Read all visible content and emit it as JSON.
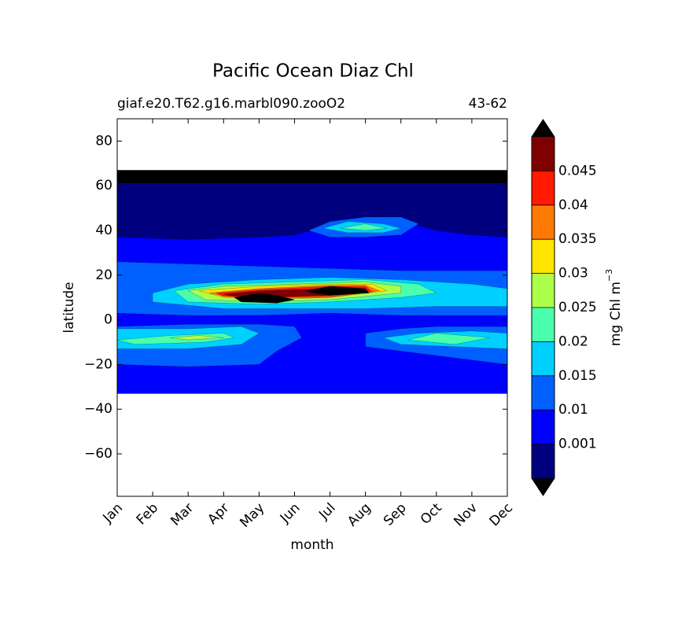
{
  "chart_data": {
    "type": "contourf",
    "title": "Pacific Ocean Diaz Chl",
    "subtitle_left": "giaf.e20.T62.g16.marbl090.zooO2",
    "subtitle_right": "43-62",
    "x_label": "month",
    "y_label": "latitude",
    "categories": [
      "Jan",
      "Feb",
      "Mar",
      "Apr",
      "May",
      "Jun",
      "Jul",
      "Aug",
      "Sep",
      "Oct",
      "Nov",
      "Dec"
    ],
    "ylim": [
      -79,
      90
    ],
    "yticks": [
      {
        "value": -60,
        "label": "−60"
      },
      {
        "value": -40,
        "label": "−40"
      },
      {
        "value": -20,
        "label": "−20"
      },
      0,
      20,
      40,
      60,
      80
    ],
    "colorbar_label": "mg Chl m",
    "colorbar_label_exponent": "−3",
    "levels": [
      0.001,
      0.01,
      0.015,
      0.02,
      0.025,
      0.03,
      0.035,
      0.04,
      0.045
    ],
    "colors": [
      "#00007f",
      "#0000ff",
      "#0060ff",
      "#00d0ff",
      "#49ffad",
      "#adff49",
      "#ffe500",
      "#ff7a00",
      "#ff1a00",
      "#7f0000"
    ],
    "extend_color": "#000000",
    "regions": [
      {
        "color": "#00007f",
        "x": [
          0,
          11,
          11,
          0
        ],
        "y": [
          61,
          61,
          -33,
          -33
        ]
      },
      {
        "color": "#000000",
        "x": [
          0,
          11,
          11,
          0
        ],
        "y": [
          67,
          67,
          61,
          61
        ]
      },
      {
        "color": "#0000ff",
        "x": [
          0,
          2,
          4,
          5,
          6,
          7,
          8,
          9,
          10,
          11,
          11,
          0
        ],
        "y": [
          37,
          36,
          37,
          38,
          42,
          45,
          44,
          40,
          38,
          37,
          -33,
          -33
        ]
      },
      {
        "color": "#0060ff",
        "x": [
          5.4,
          6,
          7,
          8,
          8.5,
          8,
          7,
          6
        ],
        "y": [
          40,
          44,
          46,
          46,
          43,
          38,
          37,
          37
        ]
      },
      {
        "color": "#0060ff",
        "x": [
          0,
          2,
          4,
          6,
          8,
          10,
          11,
          11,
          8,
          6,
          4,
          2,
          0
        ],
        "y": [
          26,
          25,
          24,
          23,
          22,
          22,
          22,
          2,
          2,
          3,
          2,
          2,
          3
        ]
      },
      {
        "color": "#0060ff",
        "x": [
          0,
          2,
          4,
          5,
          5.2,
          4.5,
          4,
          2,
          0
        ],
        "y": [
          -3,
          -2,
          -2,
          -3,
          -8,
          -14,
          -20,
          -21,
          -20
        ]
      },
      {
        "color": "#0060ff",
        "x": [
          7,
          8,
          9,
          11,
          11,
          9,
          7
        ],
        "y": [
          -6,
          -4,
          -3,
          -3,
          -20,
          -16,
          -12
        ]
      },
      {
        "color": "#00d0ff",
        "x": [
          1,
          2,
          4,
          6,
          8,
          10,
          11,
          11,
          9,
          7,
          5,
          3,
          1
        ],
        "y": [
          12,
          16,
          18,
          19,
          18,
          16,
          14,
          6,
          6,
          5,
          5,
          5,
          8
        ]
      },
      {
        "color": "#00d0ff",
        "x": [
          5.8,
          6.5,
          7.5,
          8,
          7.5,
          6.5
        ],
        "y": [
          41,
          44,
          43,
          41,
          39,
          39
        ]
      },
      {
        "color": "#00d0ff",
        "x": [
          0,
          2,
          3.5,
          4,
          3.5,
          2,
          0
        ],
        "y": [
          -4,
          -4,
          -3,
          -6,
          -11,
          -13,
          -13
        ]
      },
      {
        "color": "#00d0ff",
        "x": [
          7.5,
          8.5,
          10,
          11,
          11,
          9.5,
          8
        ],
        "y": [
          -8,
          -6,
          -5,
          -6,
          -13,
          -12,
          -11
        ]
      },
      {
        "color": "#49ffad",
        "x": [
          1.6,
          3,
          5,
          7,
          8.5,
          9,
          8,
          6,
          4,
          2
        ],
        "y": [
          13,
          16,
          17,
          18,
          16,
          12,
          10,
          8,
          7,
          8
        ]
      },
      {
        "color": "#49ffad",
        "x": [
          6.3,
          7,
          7.6,
          7
        ],
        "y": [
          41,
          43,
          41,
          40
        ]
      },
      {
        "color": "#49ffad",
        "x": [
          0,
          1.5,
          3,
          3.3,
          2.5,
          0.5
        ],
        "y": [
          -9,
          -7,
          -6,
          -8,
          -10,
          -11
        ]
      },
      {
        "color": "#49ffad",
        "x": [
          8.2,
          9,
          10.5,
          9.5
        ],
        "y": [
          -9,
          -6,
          -8,
          -11
        ]
      },
      {
        "color": "#adff49",
        "x": [
          2,
          3,
          5,
          7,
          8,
          8,
          6,
          4,
          2.5
        ],
        "y": [
          13,
          15,
          16,
          17,
          15,
          12,
          9,
          8,
          9
        ]
      },
      {
        "color": "#adff49",
        "x": [
          1.5,
          2.3,
          3,
          2
        ],
        "y": [
          -8,
          -7,
          -8,
          -9
        ]
      },
      {
        "color": "#ffe500",
        "x": [
          2.3,
          4,
          6,
          7.2,
          7.6,
          6,
          4,
          3
        ],
        "y": [
          13,
          15,
          16,
          16,
          13,
          10,
          9,
          10
        ]
      },
      {
        "color": "#ff7a00",
        "x": [
          2.6,
          4,
          6,
          7,
          7.4,
          6,
          4,
          3
        ],
        "y": [
          12,
          14,
          15.5,
          15.5,
          13,
          10,
          9.5,
          10.5
        ]
      },
      {
        "color": "#ff1a00",
        "x": [
          2.8,
          4,
          6,
          7,
          7.2,
          6,
          4,
          3
        ],
        "y": [
          12,
          13.5,
          15,
          15,
          12.5,
          10.5,
          9.8,
          10.5
        ]
      },
      {
        "color": "#7f0000",
        "x": [
          3,
          4,
          6,
          7,
          7,
          6,
          4,
          3.2
        ],
        "y": [
          11.5,
          13,
          14,
          14,
          12,
          11,
          10,
          10.8
        ]
      },
      {
        "color": "#000000",
        "x": [
          3.3,
          4,
          4.5,
          5,
          4.5,
          3.5
        ],
        "y": [
          10,
          12,
          11,
          9,
          7.5,
          8
        ]
      },
      {
        "color": "#000000",
        "x": [
          5.3,
          6,
          7,
          7.1,
          6,
          5.5
        ],
        "y": [
          13,
          15,
          14,
          12,
          11,
          12
        ]
      }
    ]
  }
}
